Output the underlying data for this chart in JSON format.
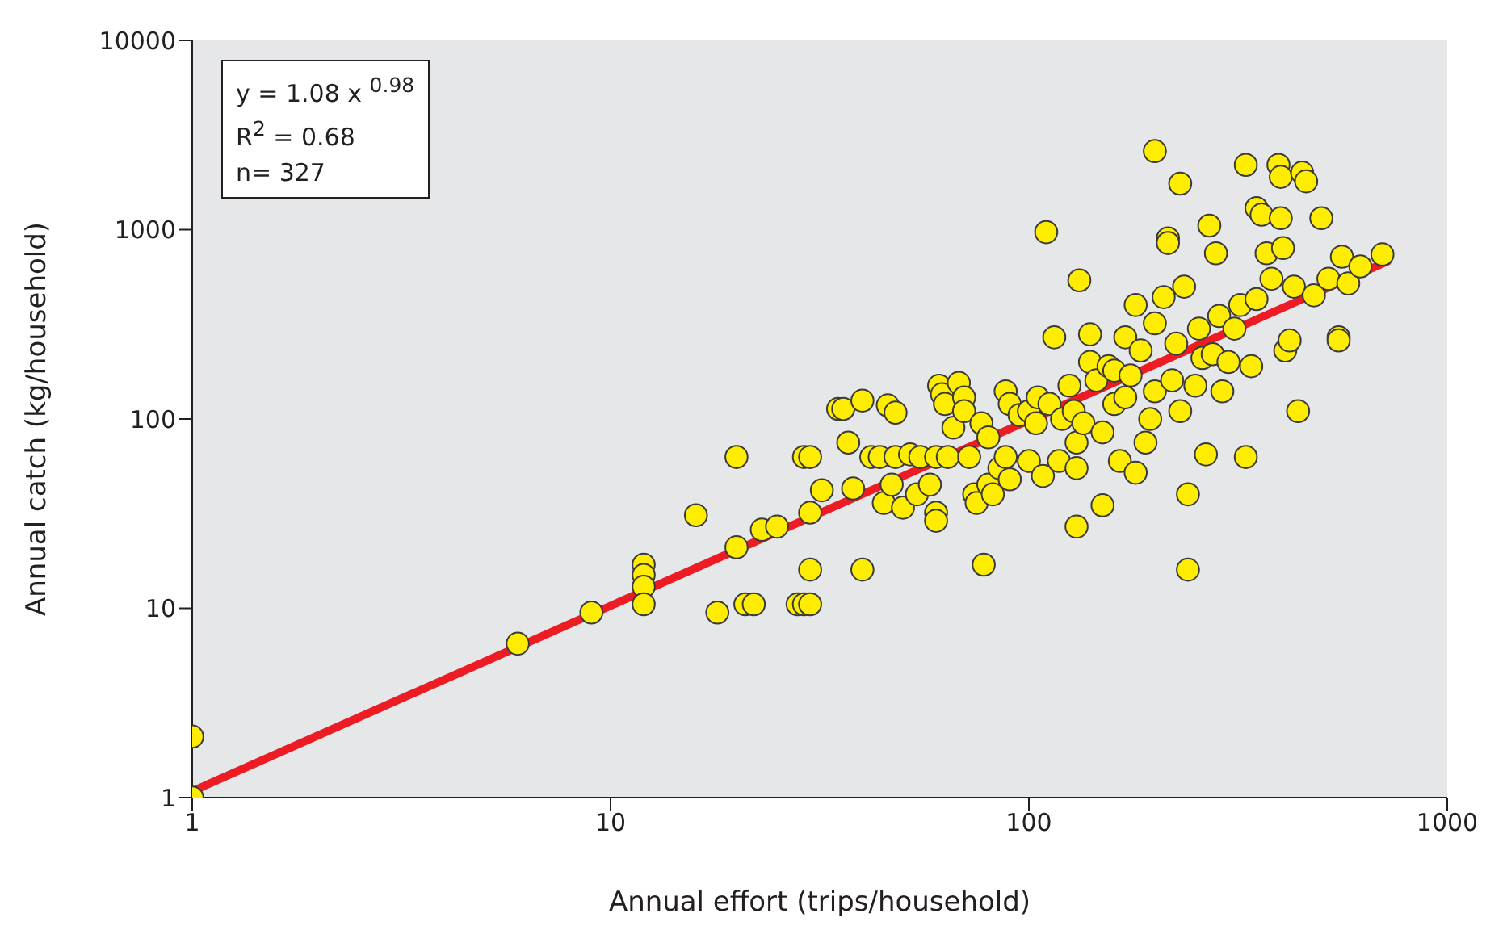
{
  "chart_data": {
    "type": "scatter",
    "xlabel": "Annual effort (trips/household)",
    "ylabel": "Annual catch (kg/household)",
    "log": "xy",
    "xlim": [
      1,
      1000
    ],
    "ylim": [
      1,
      10000
    ],
    "xticks": [
      1,
      10,
      100,
      1000
    ],
    "yticks": [
      1,
      10,
      100,
      1000,
      10000
    ],
    "annotations": [
      "y = 1.08 x $^{0.98}$",
      "R$^{2}$ = 0.68",
      "n= 327"
    ],
    "series": [
      {
        "marker": "circle",
        "color": "#ffed00",
        "x": [
          1,
          1,
          6,
          9,
          12,
          12,
          12,
          12,
          16,
          18,
          20,
          20,
          21,
          22,
          23,
          25,
          28,
          29,
          29,
          30,
          30,
          30,
          30,
          32,
          35,
          36,
          37,
          38,
          40,
          40,
          42,
          44,
          45,
          46,
          47,
          48,
          48,
          50,
          52,
          54,
          55,
          58,
          60,
          60,
          60,
          61,
          62,
          63,
          64,
          66,
          68,
          70,
          70,
          72,
          74,
          75,
          77,
          78,
          80,
          80,
          82,
          85,
          88,
          88,
          90,
          90,
          95,
          100,
          100,
          104,
          105,
          108,
          110,
          112,
          115,
          118,
          120,
          125,
          128,
          130,
          130,
          130,
          132,
          135,
          140,
          140,
          145,
          150,
          150,
          155,
          160,
          160,
          165,
          170,
          170,
          175,
          180,
          180,
          185,
          190,
          195,
          200,
          200,
          200,
          210,
          215,
          215,
          220,
          225,
          230,
          230,
          235,
          240,
          240,
          250,
          255,
          260,
          265,
          270,
          275,
          280,
          285,
          290,
          300,
          310,
          320,
          330,
          330,
          340,
          350,
          350,
          360,
          370,
          380,
          395,
          400,
          400,
          405,
          410,
          420,
          430,
          440,
          450,
          460,
          480,
          500,
          520,
          550,
          550,
          560,
          580,
          620,
          700
        ],
        "values": [
          1,
          2.1,
          6.5,
          9.5,
          17,
          15,
          13,
          10.5,
          31,
          9.5,
          21,
          63,
          10.5,
          10.5,
          26,
          27,
          10.5,
          10.5,
          63,
          63,
          32,
          16,
          10.5,
          42,
          113,
          113,
          75,
          43,
          125,
          16,
          63,
          63,
          36,
          118,
          45,
          108,
          63,
          34,
          65,
          40,
          63,
          45,
          63,
          32,
          29,
          150,
          135,
          120,
          63,
          90,
          155,
          130,
          110,
          63,
          40,
          36,
          95,
          17,
          80,
          45,
          40,
          55,
          140,
          63,
          120,
          48,
          105,
          60,
          110,
          95,
          130,
          50,
          970,
          120,
          270,
          60,
          100,
          150,
          110,
          75,
          55,
          27,
          540,
          95,
          280,
          200,
          160,
          85,
          35,
          190,
          180,
          120,
          60,
          130,
          270,
          170,
          52,
          400,
          230,
          75,
          100,
          2600,
          320,
          140,
          440,
          900,
          850,
          160,
          250,
          1750,
          110,
          500,
          40,
          16,
          150,
          300,
          210,
          65,
          1050,
          220,
          750,
          350,
          140,
          200,
          300,
          400,
          2200,
          63,
          190,
          1300,
          430,
          1200,
          750,
          550,
          2200,
          1900,
          1150,
          800,
          230,
          260,
          500,
          110,
          2000,
          1800,
          450,
          1150,
          550,
          270,
          260,
          720,
          520,
          640,
          740
        ]
      },
      {
        "type": "line",
        "color": "#ed1c24",
        "x": [
          1,
          720
        ],
        "values": [
          1.08,
          680
        ]
      }
    ]
  }
}
